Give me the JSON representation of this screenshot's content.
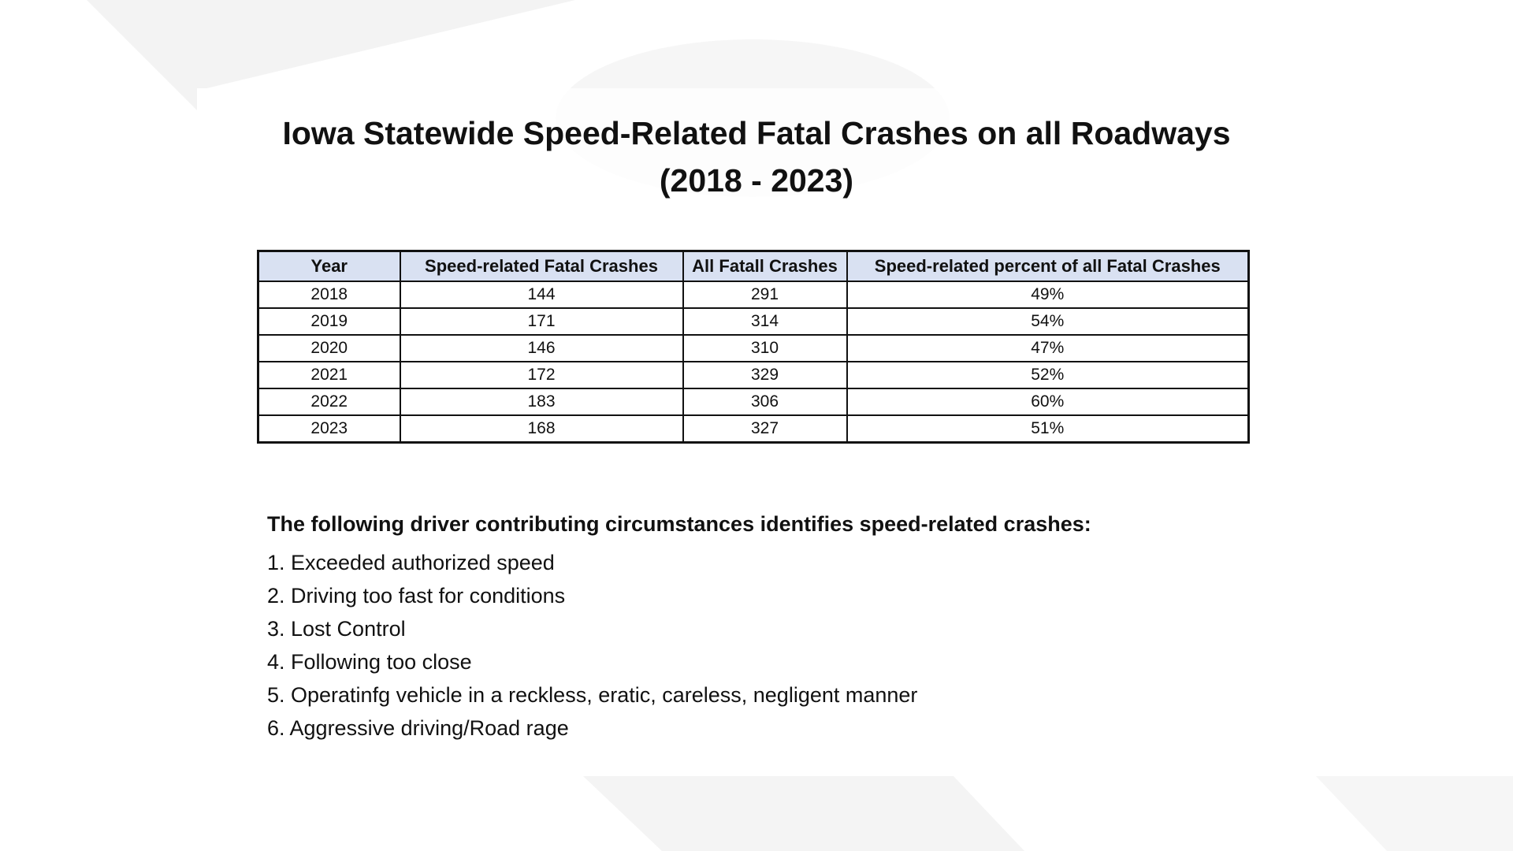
{
  "header": {
    "title_lines": [
      "Iowa Statewide Speed-Related Fatal Crashes on all Roadways",
      "(2018 - 2023)"
    ]
  },
  "table": {
    "columns": [
      "Year",
      "Speed-related Fatal Crashes",
      "All Fatall Crashes",
      "Speed-related percent of all Fatal Crashes"
    ],
    "rows": [
      [
        "2018",
        "144",
        "291",
        "49%"
      ],
      [
        "2019",
        "171",
        "314",
        "54%"
      ],
      [
        "2020",
        "146",
        "310",
        "47%"
      ],
      [
        "2021",
        "172",
        "329",
        "52%"
      ],
      [
        "2022",
        "183",
        "306",
        "60%"
      ],
      [
        "2023",
        "168",
        "327",
        "51%"
      ]
    ]
  },
  "notes": {
    "heading": "The following driver contributing circumstances identifies speed-related crashes:",
    "items": [
      "1. Exceeded authorized speed",
      "2. Driving too fast for conditions",
      "3. Lost Control",
      "4. Following too close",
      "5. Operatinfg vehicle in a reckless, eratic, careless, negligent manner",
      "6. Aggressive driving/Road rage"
    ]
  }
}
